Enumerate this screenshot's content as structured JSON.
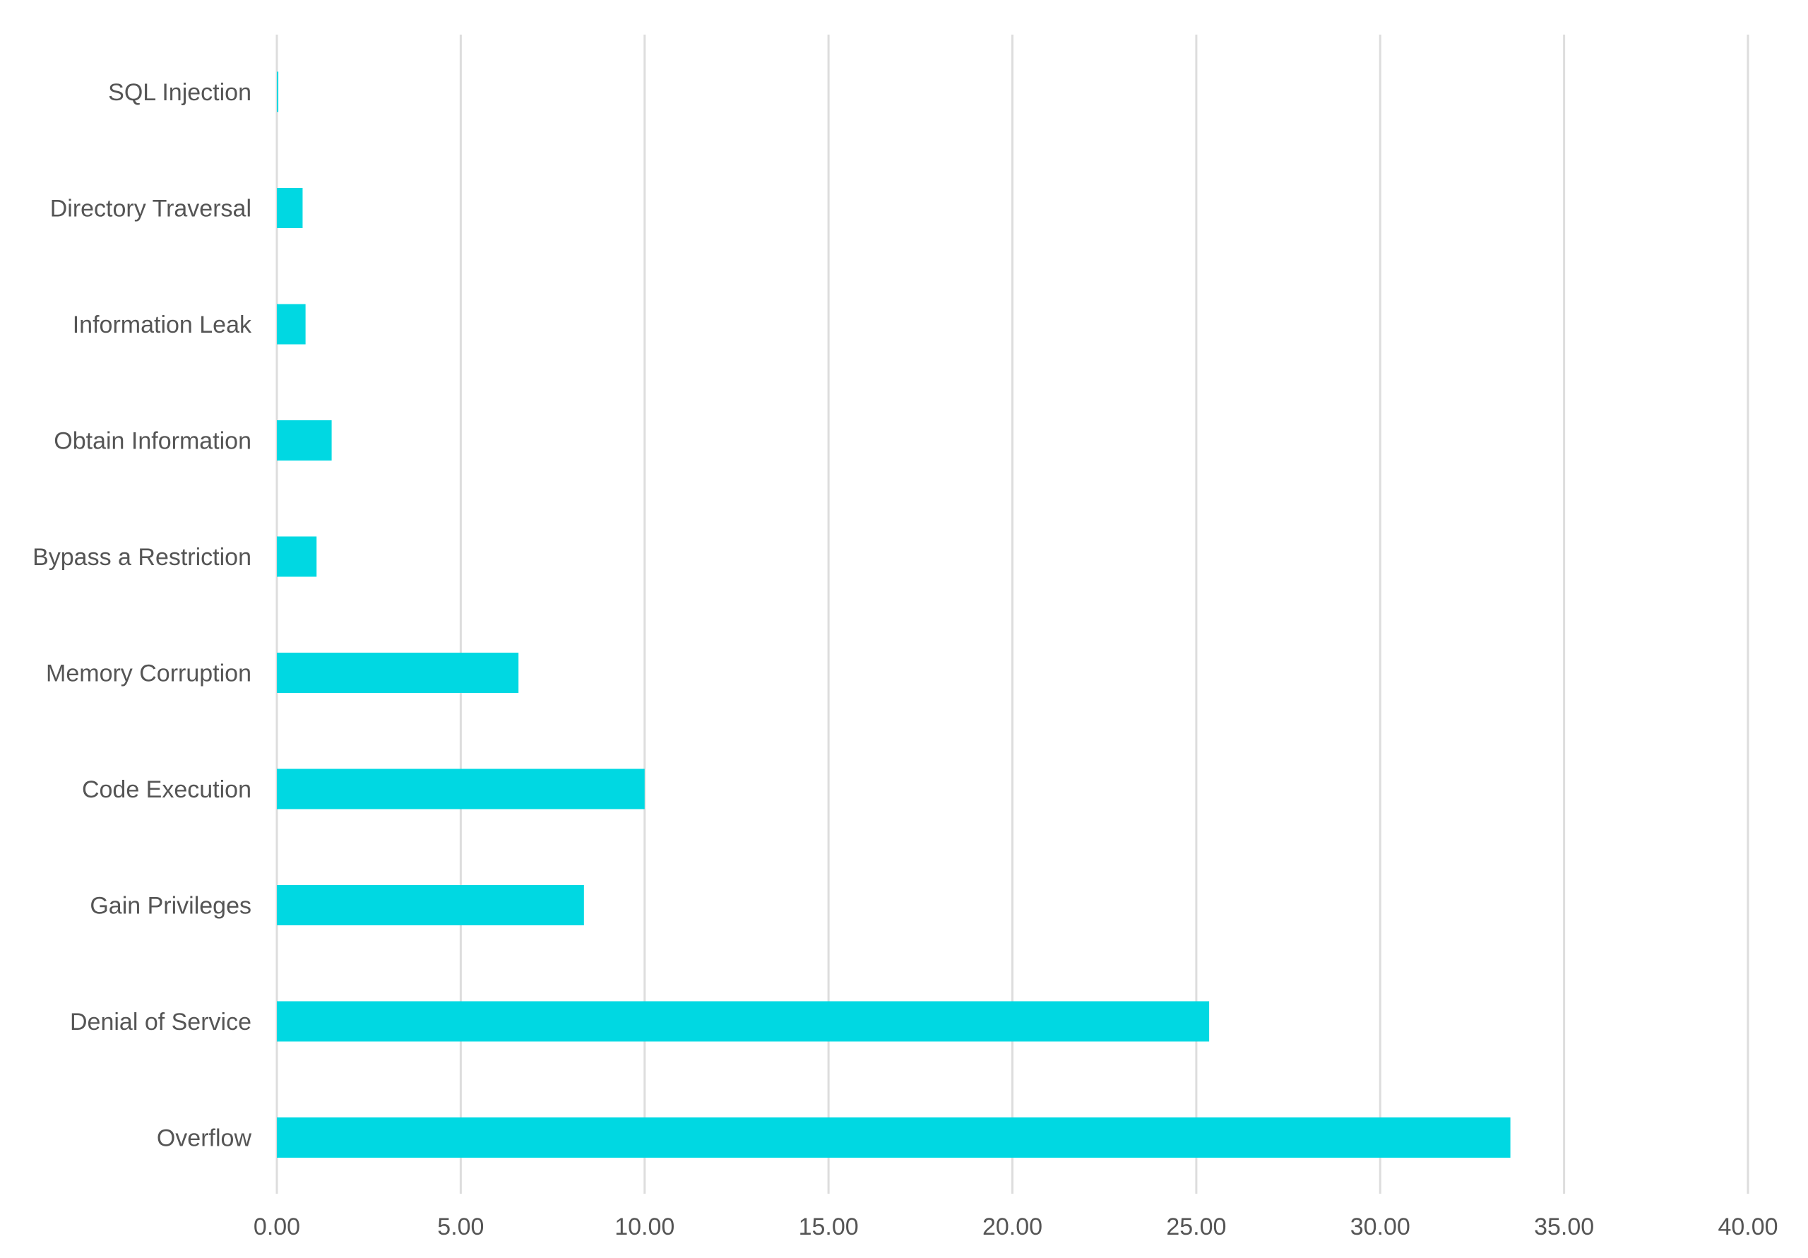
{
  "chart_data": {
    "type": "bar",
    "orientation": "horizontal",
    "categories": [
      "SQL Injection",
      "Directory Traversal",
      "Information Leak",
      "Obtain Information",
      "Bypass a Restriction",
      "Memory Corruption",
      "Code Execution",
      "Gain Privileges",
      "Denial of Service",
      "Overflow"
    ],
    "values": [
      0.04,
      0.7,
      0.78,
      1.49,
      1.08,
      6.57,
      10.0,
      8.35,
      25.35,
      33.54
    ],
    "title": "",
    "xlabel": "",
    "ylabel": "",
    "xlim": [
      0,
      40
    ],
    "xticks": [
      "0.00",
      "5.00",
      "10.00",
      "15.00",
      "20.00",
      "25.00",
      "30.00",
      "35.00",
      "40.00"
    ],
    "grid": true,
    "legend": "none",
    "colors": {
      "bar": "#00d8e2",
      "grid": "#dddddd",
      "text": "#555555"
    }
  }
}
